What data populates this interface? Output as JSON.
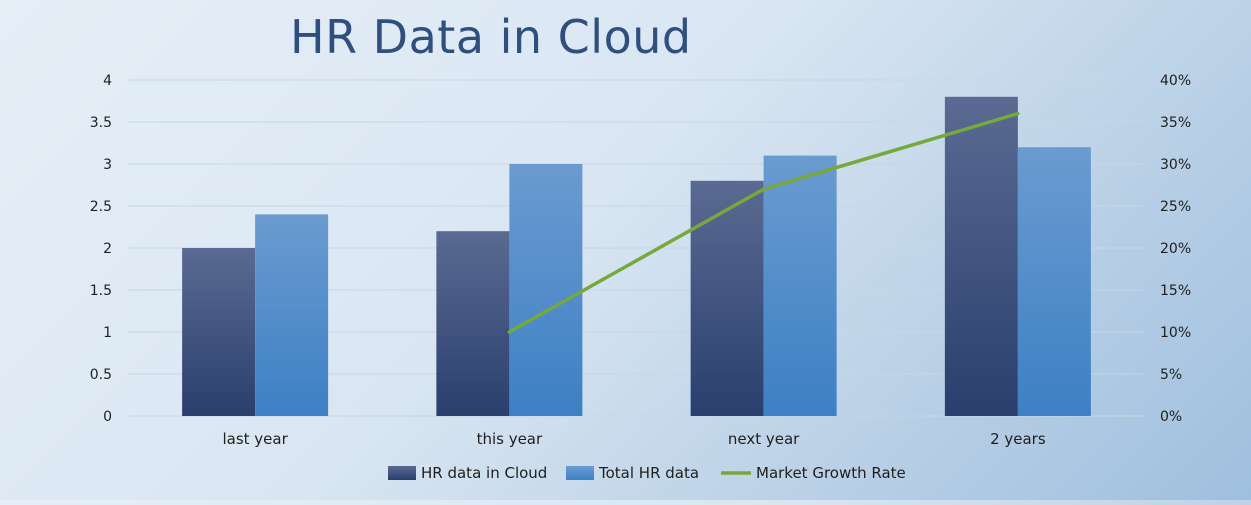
{
  "chart_data": {
    "type": "bar",
    "title": "HR Data in Cloud",
    "categories": [
      "last year",
      "this year",
      "next year",
      "2 years"
    ],
    "series": [
      {
        "name": "HR data in Cloud",
        "kind": "bar",
        "axis": "left",
        "values": [
          2.0,
          2.2,
          2.8,
          3.8
        ]
      },
      {
        "name": "Total HR data",
        "kind": "bar",
        "axis": "left",
        "values": [
          2.4,
          3.0,
          3.1,
          3.2
        ]
      },
      {
        "name": "Market Growth Rate",
        "kind": "line",
        "axis": "right",
        "values": [
          null,
          0.1,
          0.27,
          0.36
        ]
      }
    ],
    "y_left": {
      "ylim": [
        0,
        4
      ],
      "ticks": [
        "0",
        "0.5",
        "1",
        "1.5",
        "2",
        "2.5",
        "3",
        "3.5",
        "4"
      ]
    },
    "y_right": {
      "ylim": [
        0,
        0.4
      ],
      "ticks": [
        "0%",
        "5%",
        "10%",
        "15%",
        "20%",
        "25%",
        "30%",
        "35%",
        "40%"
      ]
    },
    "grid": true,
    "legend": "bottom",
    "colors": {
      "bar1": "#2f4675",
      "bar2": "#4a88c8",
      "line": "#76a83c",
      "text": "#1f1f1f",
      "title": "#2f4f7f",
      "grid": "#c8d6e4"
    }
  }
}
